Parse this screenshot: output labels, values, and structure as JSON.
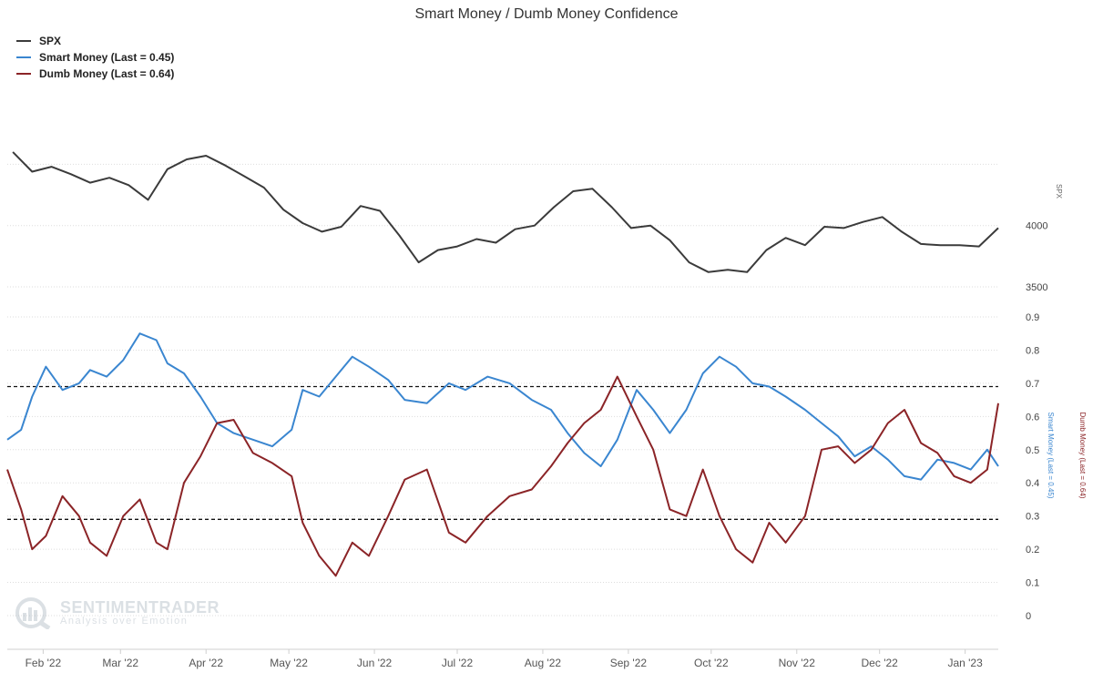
{
  "chart_data": {
    "type": "line",
    "title": "Smart Money / Dumb Money Confidence",
    "legend": [
      {
        "name": "SPX",
        "color": "#3b3b3b"
      },
      {
        "name": "Smart Money (Last = 0.45)",
        "color": "#3a86d0"
      },
      {
        "name": "Dumb Money (Last = 0.64)",
        "color": "#8b2427"
      }
    ],
    "legend_position": "top-left",
    "x_tick_labels": [
      "Feb '22",
      "Mar '22",
      "Apr '22",
      "May '22",
      "Jun '22",
      "Jul '22",
      "Aug '22",
      "Sep '22",
      "Oct '22",
      "Nov '22",
      "Dec '22",
      "Jan '23"
    ],
    "spx_axis": {
      "label": "SPX",
      "ticks": [
        "4000",
        "3500"
      ],
      "range": [
        3500,
        4800
      ]
    },
    "confidence_axis": {
      "smart_label": "Smart Money (Last = 0.45)",
      "dumb_label": "Dumb Money (Last = 0.64)",
      "ticks": [
        "0.9",
        "0.8",
        "0.7",
        "0.6",
        "0.5",
        "0.4",
        "0.3",
        "0.2",
        "0.1",
        "0"
      ],
      "range": [
        0,
        0.9
      ]
    },
    "reference_lines": [
      0.69,
      0.29
    ],
    "grid": true,
    "series": [
      {
        "name": "SPX",
        "dates": [
          "2022-01-21",
          "2022-01-28",
          "2022-02-04",
          "2022-02-11",
          "2022-02-18",
          "2022-02-25",
          "2022-03-04",
          "2022-03-11",
          "2022-03-18",
          "2022-03-25",
          "2022-04-01",
          "2022-04-08",
          "2022-04-15",
          "2022-04-22",
          "2022-04-29",
          "2022-05-06",
          "2022-05-13",
          "2022-05-20",
          "2022-05-27",
          "2022-06-03",
          "2022-06-10",
          "2022-06-17",
          "2022-06-24",
          "2022-07-01",
          "2022-07-08",
          "2022-07-15",
          "2022-07-22",
          "2022-07-29",
          "2022-08-05",
          "2022-08-12",
          "2022-08-19",
          "2022-08-26",
          "2022-09-02",
          "2022-09-09",
          "2022-09-16",
          "2022-09-23",
          "2022-09-30",
          "2022-10-07",
          "2022-10-14",
          "2022-10-21",
          "2022-10-28",
          "2022-11-04",
          "2022-11-11",
          "2022-11-18",
          "2022-11-25",
          "2022-12-02",
          "2022-12-09",
          "2022-12-16",
          "2022-12-23",
          "2022-12-30",
          "2023-01-06",
          "2023-01-13"
        ],
        "values": [
          4600,
          4440,
          4480,
          4420,
          4350,
          4390,
          4330,
          4210,
          4460,
          4540,
          4570,
          4490,
          4400,
          4310,
          4130,
          4020,
          3950,
          3990,
          4160,
          4120,
          3920,
          3700,
          3800,
          3830,
          3890,
          3860,
          3970,
          4000,
          4150,
          4280,
          4300,
          4150,
          3980,
          4000,
          3880,
          3700,
          3620,
          3640,
          3620,
          3800,
          3900,
          3840,
          3990,
          3980,
          4030,
          4070,
          3950,
          3850,
          3840,
          3840,
          3830,
          3980
        ]
      },
      {
        "name": "Smart Money (Last = 0.45)",
        "dates": [
          "2022-01-19",
          "2022-01-24",
          "2022-01-28",
          "2022-02-02",
          "2022-02-08",
          "2022-02-14",
          "2022-02-18",
          "2022-02-24",
          "2022-03-02",
          "2022-03-08",
          "2022-03-14",
          "2022-03-18",
          "2022-03-24",
          "2022-03-30",
          "2022-04-05",
          "2022-04-11",
          "2022-04-18",
          "2022-04-25",
          "2022-05-02",
          "2022-05-06",
          "2022-05-12",
          "2022-05-18",
          "2022-05-24",
          "2022-05-30",
          "2022-06-06",
          "2022-06-12",
          "2022-06-20",
          "2022-06-28",
          "2022-07-04",
          "2022-07-12",
          "2022-07-20",
          "2022-07-28",
          "2022-08-04",
          "2022-08-10",
          "2022-08-16",
          "2022-08-22",
          "2022-08-28",
          "2022-09-04",
          "2022-09-10",
          "2022-09-16",
          "2022-09-22",
          "2022-09-28",
          "2022-10-04",
          "2022-10-10",
          "2022-10-16",
          "2022-10-22",
          "2022-10-28",
          "2022-11-04",
          "2022-11-10",
          "2022-11-16",
          "2022-11-22",
          "2022-11-28",
          "2022-12-04",
          "2022-12-10",
          "2022-12-16",
          "2022-12-22",
          "2022-12-28",
          "2023-01-03",
          "2023-01-09",
          "2023-01-13"
        ],
        "values": [
          0.53,
          0.56,
          0.66,
          0.75,
          0.68,
          0.7,
          0.74,
          0.72,
          0.77,
          0.85,
          0.83,
          0.76,
          0.73,
          0.66,
          0.58,
          0.55,
          0.53,
          0.51,
          0.56,
          0.68,
          0.66,
          0.72,
          0.78,
          0.75,
          0.71,
          0.65,
          0.64,
          0.7,
          0.68,
          0.72,
          0.7,
          0.65,
          0.62,
          0.55,
          0.49,
          0.45,
          0.53,
          0.68,
          0.62,
          0.55,
          0.62,
          0.73,
          0.78,
          0.75,
          0.7,
          0.69,
          0.66,
          0.62,
          0.58,
          0.54,
          0.48,
          0.51,
          0.47,
          0.42,
          0.41,
          0.47,
          0.46,
          0.44,
          0.5,
          0.45
        ]
      },
      {
        "name": "Dumb Money (Last = 0.64)",
        "dates": [
          "2022-01-19",
          "2022-01-24",
          "2022-01-28",
          "2022-02-02",
          "2022-02-08",
          "2022-02-14",
          "2022-02-18",
          "2022-02-24",
          "2022-03-02",
          "2022-03-08",
          "2022-03-14",
          "2022-03-18",
          "2022-03-24",
          "2022-03-30",
          "2022-04-05",
          "2022-04-11",
          "2022-04-18",
          "2022-04-25",
          "2022-05-02",
          "2022-05-06",
          "2022-05-12",
          "2022-05-18",
          "2022-05-24",
          "2022-05-30",
          "2022-06-06",
          "2022-06-12",
          "2022-06-20",
          "2022-06-28",
          "2022-07-04",
          "2022-07-12",
          "2022-07-20",
          "2022-07-28",
          "2022-08-04",
          "2022-08-10",
          "2022-08-16",
          "2022-08-22",
          "2022-08-28",
          "2022-09-04",
          "2022-09-10",
          "2022-09-16",
          "2022-09-22",
          "2022-09-28",
          "2022-10-04",
          "2022-10-10",
          "2022-10-16",
          "2022-10-22",
          "2022-10-28",
          "2022-11-04",
          "2022-11-10",
          "2022-11-16",
          "2022-11-22",
          "2022-11-28",
          "2022-12-04",
          "2022-12-10",
          "2022-12-16",
          "2022-12-22",
          "2022-12-28",
          "2023-01-03",
          "2023-01-09",
          "2023-01-13"
        ],
        "values": [
          0.44,
          0.32,
          0.2,
          0.24,
          0.36,
          0.3,
          0.22,
          0.18,
          0.3,
          0.35,
          0.22,
          0.2,
          0.4,
          0.48,
          0.58,
          0.59,
          0.49,
          0.46,
          0.42,
          0.28,
          0.18,
          0.12,
          0.22,
          0.18,
          0.3,
          0.41,
          0.44,
          0.25,
          0.22,
          0.3,
          0.36,
          0.38,
          0.45,
          0.52,
          0.58,
          0.62,
          0.72,
          0.6,
          0.5,
          0.32,
          0.3,
          0.44,
          0.3,
          0.2,
          0.16,
          0.28,
          0.22,
          0.3,
          0.5,
          0.51,
          0.46,
          0.5,
          0.58,
          0.62,
          0.52,
          0.49,
          0.42,
          0.4,
          0.44,
          0.64
        ]
      }
    ]
  },
  "watermark": {
    "name": "SENTIMENTRADER",
    "tagline": "Analysis over Emotion"
  }
}
